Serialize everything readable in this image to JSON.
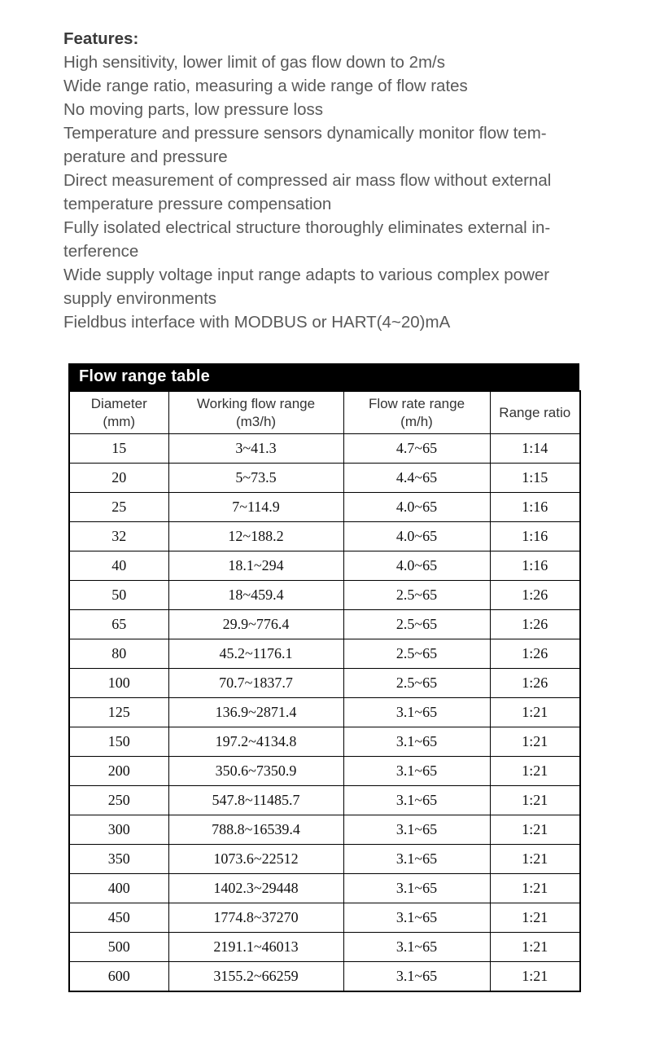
{
  "features": {
    "heading": "Features:",
    "lines": [
      "High sensitivity, lower limit of gas flow down to 2m/s",
      "Wide range ratio, measuring a wide range of flow rates",
      "No moving parts, low pressure loss",
      "Temperature and pressure sensors dynamically monitor flow tem-",
      "perature and pressure",
      "Direct measurement of compressed air mass flow without external",
      "temperature pressure compensation",
      "Fully isolated electrical structure thoroughly eliminates external in-",
      "terference",
      "Wide supply voltage input range adapts to various complex power",
      "supply environments",
      "Fieldbus interface with MODBUS or HART(4~20)mA"
    ]
  },
  "table": {
    "title": "Flow range table",
    "columns": [
      {
        "line1": "Diameter",
        "line2": "(mm)"
      },
      {
        "line1": "Working flow range",
        "line2": "(m3/h)"
      },
      {
        "line1": "Flow rate range",
        "line2": "(m/h)"
      },
      {
        "line1": "Range ratio",
        "line2": ""
      }
    ],
    "rows": [
      {
        "diameter": "15",
        "working": "3~41.3",
        "rate": "4.7~65",
        "ratio": "1:14"
      },
      {
        "diameter": "20",
        "working": "5~73.5",
        "rate": "4.4~65",
        "ratio": "1:15"
      },
      {
        "diameter": "25",
        "working": "7~114.9",
        "rate": "4.0~65",
        "ratio": "1:16"
      },
      {
        "diameter": "32",
        "working": "12~188.2",
        "rate": "4.0~65",
        "ratio": "1:16"
      },
      {
        "diameter": "40",
        "working": "18.1~294",
        "rate": "4.0~65",
        "ratio": "1:16"
      },
      {
        "diameter": "50",
        "working": "18~459.4",
        "rate": "2.5~65",
        "ratio": "1:26"
      },
      {
        "diameter": "65",
        "working": "29.9~776.4",
        "rate": "2.5~65",
        "ratio": "1:26"
      },
      {
        "diameter": "80",
        "working": "45.2~1176.1",
        "rate": "2.5~65",
        "ratio": "1:26"
      },
      {
        "diameter": "100",
        "working": "70.7~1837.7",
        "rate": "2.5~65",
        "ratio": "1:26"
      },
      {
        "diameter": "125",
        "working": "136.9~2871.4",
        "rate": "3.1~65",
        "ratio": "1:21"
      },
      {
        "diameter": "150",
        "working": "197.2~4134.8",
        "rate": "3.1~65",
        "ratio": "1:21"
      },
      {
        "diameter": "200",
        "working": "350.6~7350.9",
        "rate": "3.1~65",
        "ratio": "1:21"
      },
      {
        "diameter": "250",
        "working": "547.8~11485.7",
        "rate": "3.1~65",
        "ratio": "1:21"
      },
      {
        "diameter": "300",
        "working": "788.8~16539.4",
        "rate": "3.1~65",
        "ratio": "1:21"
      },
      {
        "diameter": "350",
        "working": "1073.6~22512",
        "rate": "3.1~65",
        "ratio": "1:21"
      },
      {
        "diameter": "400",
        "working": "1402.3~29448",
        "rate": "3.1~65",
        "ratio": "1:21"
      },
      {
        "diameter": "450",
        "working": "1774.8~37270",
        "rate": "3.1~65",
        "ratio": "1:21"
      },
      {
        "diameter": "500",
        "working": "2191.1~46013",
        "rate": "3.1~65",
        "ratio": "1:21"
      },
      {
        "diameter": "600",
        "working": "3155.2~66259",
        "rate": "3.1~65",
        "ratio": "1:21"
      }
    ]
  },
  "colors": {
    "page_bg": "#ffffff",
    "title_bar_bg": "#000000",
    "title_bar_text": "#ffffff",
    "body_text": "#595959",
    "heading_text": "#3a3a3a",
    "cell_text": "#111111",
    "border": "#000000"
  }
}
